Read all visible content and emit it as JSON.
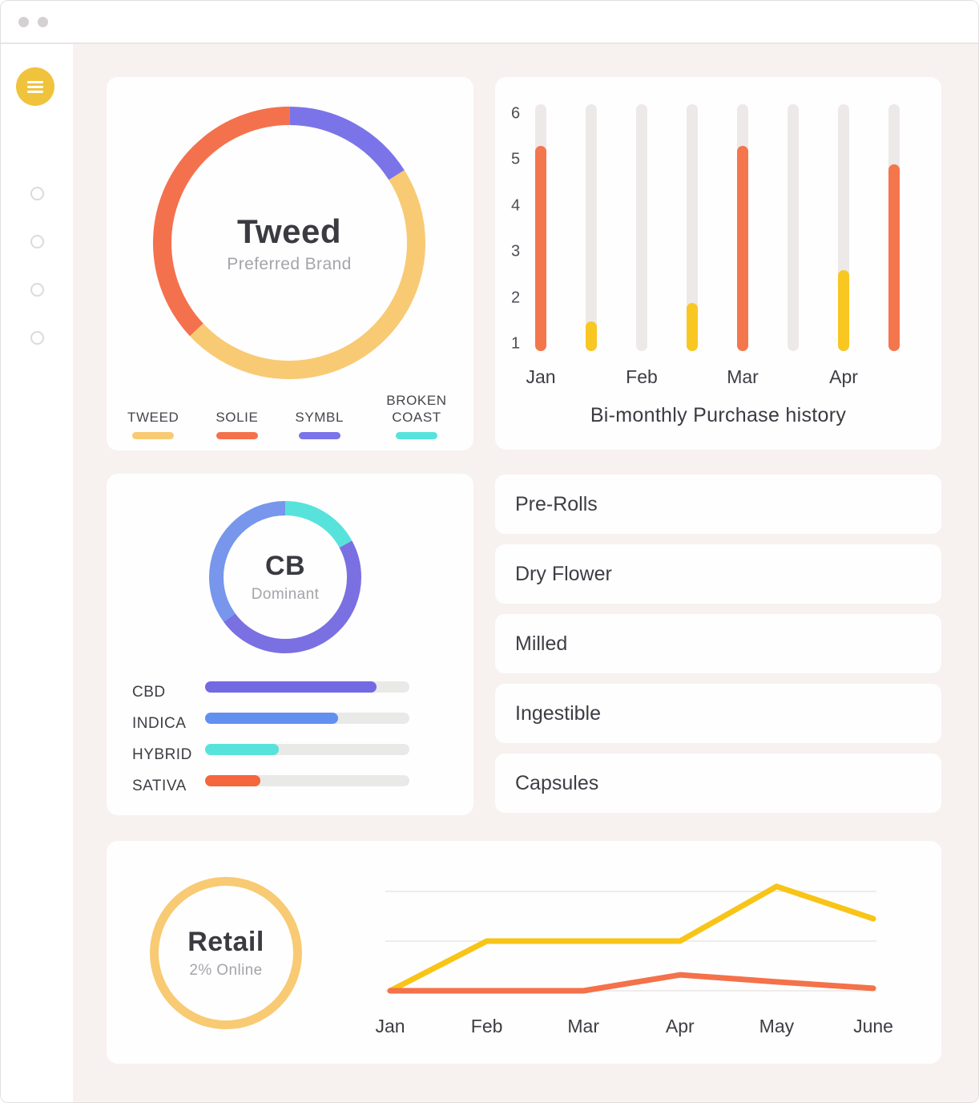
{
  "window": {
    "controls": [
      {
        "icon": "window-dot"
      },
      {
        "icon": "window-dot"
      }
    ]
  },
  "sidebar": {
    "menu_button": {
      "icon": "hamburger-menu"
    },
    "nav_items": [
      {
        "icon": "circle-outline"
      },
      {
        "icon": "circle-outline"
      },
      {
        "icon": "circle-outline"
      },
      {
        "icon": "circle-outline"
      }
    ]
  },
  "retail_stat": {
    "title": "Retail",
    "subtitle": "2% Online"
  },
  "product_list": {
    "items": [
      "Pre-Rolls",
      "Dry Flower",
      "Milled",
      "Ingestible",
      "Capsules"
    ]
  },
  "palette": {
    "orange": "#F4714A",
    "gold": "#F8C722",
    "soft_yellow": "#F8CA73",
    "purple": "#7B74E8",
    "violet": "#7269E3",
    "blue": "#6290F0",
    "cyan": "#57E3DB",
    "page_bg": "#F7F1F0",
    "card_bg": "#FEFEFE",
    "text_dark": "#3A3A41",
    "text_gray": "#A5A4AA"
  },
  "chart_data": [
    {
      "id": "brand-donut",
      "type": "pie",
      "center_label": "Tweed",
      "center_sublabel": "Preferred Brand",
      "slices": [
        {
          "label": "SYMBL",
          "value": 16,
          "color": "#7B74E8"
        },
        {
          "label": "TWEED",
          "value": 47,
          "color": "#F8CA73"
        },
        {
          "label": "SOLIE",
          "value": 37,
          "color": "#F4714D"
        }
      ],
      "legend": [
        {
          "label": "TWEED",
          "color": "#F8CA73"
        },
        {
          "label": "SOLIE",
          "color": "#F4714D"
        },
        {
          "label": "SYMBL",
          "color": "#7B74E8"
        },
        {
          "label": "BROKEN COAST",
          "color": "#57E3DB"
        }
      ],
      "legend_position": "bottom"
    },
    {
      "id": "purchase-bars",
      "type": "bar",
      "title": "Bi-monthly Purchase history",
      "y_ticks": [
        6,
        5,
        4,
        3,
        2,
        1
      ],
      "ylim": [
        0.85,
        6.2
      ],
      "x_labels": [
        "Jan",
        "Feb",
        "Mar",
        "Apr"
      ],
      "bars_per_month": 2,
      "track_color": "#EDE9E8",
      "bars": [
        {
          "month": "Jan",
          "value": 5.3,
          "color": "#F4764D"
        },
        {
          "month": "Jan",
          "value": 1.5,
          "color": "#F8C722"
        },
        {
          "month": "Feb",
          "value": 0,
          "color": null
        },
        {
          "month": "Feb",
          "value": 1.9,
          "color": "#F8C722"
        },
        {
          "month": "Mar",
          "value": 5.3,
          "color": "#F4764D"
        },
        {
          "month": "Mar",
          "value": 0,
          "color": null
        },
        {
          "month": "Apr",
          "value": 2.6,
          "color": "#F8C722"
        },
        {
          "month": "Apr",
          "value": 4.9,
          "color": "#F4764D"
        }
      ]
    },
    {
      "id": "dominance-donut",
      "type": "pie",
      "center_label": "CB",
      "center_sublabel": "Dominant",
      "slices": [
        {
          "label": "HYBRID",
          "value": 17,
          "color": "#57E3DB"
        },
        {
          "label": "CBD",
          "value": 48,
          "color": "#7A70E2"
        },
        {
          "label": "INDICA",
          "value": 35,
          "color": "#7796EC"
        }
      ]
    },
    {
      "id": "dominance-bars",
      "type": "bar",
      "orientation": "horizontal",
      "max": 100,
      "track_color": "#E9E9E7",
      "bars": [
        {
          "label": "CBD",
          "value": 84,
          "color": "#7269E3"
        },
        {
          "label": "INDICA",
          "value": 65,
          "color": "#6290F0"
        },
        {
          "label": "HYBRID",
          "value": 36,
          "color": "#57E3DB"
        },
        {
          "label": "SATIVA",
          "value": 27,
          "color": "#F4673C"
        }
      ]
    },
    {
      "id": "retail-line",
      "type": "line",
      "x": [
        "Jan",
        "Feb",
        "Mar",
        "Apr",
        "May",
        "June"
      ],
      "ylim": [
        0,
        2.35
      ],
      "gridlines": [
        0,
        1,
        2
      ],
      "grid_color": "#EFECEB",
      "series": [
        {
          "name": "gold-line",
          "color": "#F8C417",
          "values": [
            0,
            1,
            1,
            1,
            2.1,
            1.45
          ]
        },
        {
          "name": "orange-line",
          "color": "#F4714A",
          "values": [
            0,
            0,
            0,
            0.32,
            0.18,
            0.05
          ]
        }
      ]
    }
  ]
}
